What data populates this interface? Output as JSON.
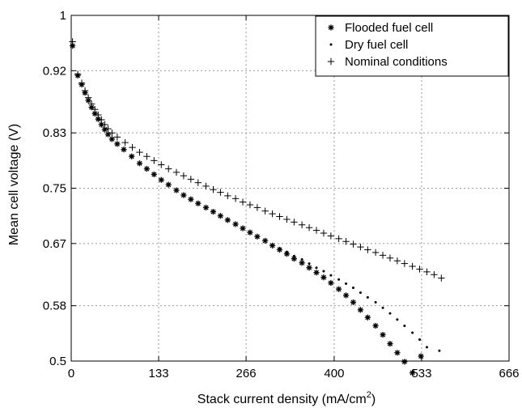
{
  "chart_data": {
    "type": "scatter",
    "title": "",
    "xlabel": "Stack current density (mA/cm",
    "xlabel_sup": "2",
    "xlabel_close": ")",
    "ylabel": "Mean cell voltage (V)",
    "xlim": [
      0,
      666
    ],
    "ylim": [
      0.5,
      1
    ],
    "x_ticks": [
      0,
      133,
      266,
      400,
      533,
      666
    ],
    "x_tick_labels": [
      "0",
      "133",
      "266",
      "400",
      "533",
      "666"
    ],
    "y_ticks": [
      0.5,
      0.58,
      0.67,
      0.75,
      0.83,
      0.92,
      1
    ],
    "y_tick_labels": [
      "0.5",
      "0.58",
      "0.67",
      "0.75",
      "0.83",
      "0.92",
      "1"
    ],
    "grid": true,
    "legend_position": "top-right",
    "series": [
      {
        "name": "Flooded fuel cell",
        "marker": "asterisk",
        "points": [
          [
            2,
            0.956
          ],
          [
            10,
            0.913
          ],
          [
            16,
            0.9
          ],
          [
            21,
            0.888
          ],
          [
            26,
            0.877
          ],
          [
            31,
            0.867
          ],
          [
            36,
            0.858
          ],
          [
            41,
            0.85
          ],
          [
            46,
            0.842
          ],
          [
            51,
            0.835
          ],
          [
            56,
            0.828
          ],
          [
            62,
            0.821
          ],
          [
            70,
            0.814
          ],
          [
            80,
            0.806
          ],
          [
            92,
            0.796
          ],
          [
            104,
            0.786
          ],
          [
            115,
            0.778
          ],
          [
            126,
            0.77
          ],
          [
            137,
            0.762
          ],
          [
            148,
            0.755
          ],
          [
            160,
            0.747
          ],
          [
            171,
            0.74
          ],
          [
            182,
            0.734
          ],
          [
            193,
            0.728
          ],
          [
            205,
            0.722
          ],
          [
            216,
            0.716
          ],
          [
            227,
            0.71
          ],
          [
            238,
            0.704
          ],
          [
            250,
            0.698
          ],
          [
            261,
            0.692
          ],
          [
            272,
            0.686
          ],
          [
            283,
            0.68
          ],
          [
            295,
            0.674
          ],
          [
            306,
            0.667
          ],
          [
            317,
            0.661
          ],
          [
            328,
            0.655
          ],
          [
            339,
            0.648
          ],
          [
            351,
            0.642
          ],
          [
            362,
            0.635
          ],
          [
            373,
            0.628
          ],
          [
            384,
            0.621
          ],
          [
            395,
            0.613
          ],
          [
            407,
            0.604
          ],
          [
            418,
            0.595
          ],
          [
            429,
            0.585
          ],
          [
            440,
            0.574
          ],
          [
            451,
            0.563
          ],
          [
            463,
            0.551
          ],
          [
            474,
            0.538
          ],
          [
            485,
            0.525
          ],
          [
            496,
            0.512
          ],
          [
            507,
            0.499
          ],
          [
            519,
            0.483
          ],
          [
            532,
            0.507
          ]
        ]
      },
      {
        "name": "Dry fuel cell",
        "marker": "dot",
        "points": [
          [
            2,
            0.956
          ],
          [
            10,
            0.913
          ],
          [
            16,
            0.9
          ],
          [
            21,
            0.888
          ],
          [
            26,
            0.877
          ],
          [
            31,
            0.867
          ],
          [
            36,
            0.858
          ],
          [
            41,
            0.85
          ],
          [
            46,
            0.842
          ],
          [
            51,
            0.835
          ],
          [
            56,
            0.828
          ],
          [
            62,
            0.821
          ],
          [
            70,
            0.814
          ],
          [
            80,
            0.806
          ],
          [
            92,
            0.796
          ],
          [
            104,
            0.786
          ],
          [
            115,
            0.778
          ],
          [
            126,
            0.77
          ],
          [
            137,
            0.762
          ],
          [
            148,
            0.755
          ],
          [
            160,
            0.747
          ],
          [
            171,
            0.74
          ],
          [
            182,
            0.734
          ],
          [
            193,
            0.728
          ],
          [
            205,
            0.722
          ],
          [
            216,
            0.716
          ],
          [
            227,
            0.71
          ],
          [
            238,
            0.704
          ],
          [
            250,
            0.698
          ],
          [
            261,
            0.692
          ],
          [
            272,
            0.686
          ],
          [
            283,
            0.68
          ],
          [
            295,
            0.674
          ],
          [
            306,
            0.668
          ],
          [
            317,
            0.663
          ],
          [
            328,
            0.658
          ],
          [
            339,
            0.652
          ],
          [
            351,
            0.647
          ],
          [
            362,
            0.641
          ],
          [
            373,
            0.635
          ],
          [
            384,
            0.63
          ],
          [
            395,
            0.624
          ],
          [
            407,
            0.618
          ],
          [
            418,
            0.612
          ],
          [
            429,
            0.606
          ],
          [
            440,
            0.599
          ],
          [
            451,
            0.592
          ],
          [
            463,
            0.585
          ],
          [
            474,
            0.577
          ],
          [
            485,
            0.569
          ],
          [
            496,
            0.56
          ],
          [
            507,
            0.551
          ],
          [
            519,
            0.541
          ],
          [
            530,
            0.531
          ],
          [
            541,
            0.52
          ],
          [
            560,
            0.515
          ]
        ]
      },
      {
        "name": "Nominal conditions",
        "marker": "plus",
        "points": [
          [
            2,
            0.962
          ],
          [
            10,
            0.915
          ],
          [
            16,
            0.902
          ],
          [
            21,
            0.891
          ],
          [
            26,
            0.881
          ],
          [
            31,
            0.872
          ],
          [
            36,
            0.864
          ],
          [
            41,
            0.856
          ],
          [
            46,
            0.849
          ],
          [
            51,
            0.842
          ],
          [
            56,
            0.836
          ],
          [
            62,
            0.83
          ],
          [
            70,
            0.824
          ],
          [
            82,
            0.816
          ],
          [
            93,
            0.809
          ],
          [
            104,
            0.802
          ],
          [
            115,
            0.796
          ],
          [
            126,
            0.79
          ],
          [
            137,
            0.784
          ],
          [
            148,
            0.778
          ],
          [
            160,
            0.773
          ],
          [
            171,
            0.768
          ],
          [
            182,
            0.763
          ],
          [
            193,
            0.758
          ],
          [
            205,
            0.753
          ],
          [
            216,
            0.748
          ],
          [
            227,
            0.744
          ],
          [
            238,
            0.739
          ],
          [
            250,
            0.735
          ],
          [
            261,
            0.73
          ],
          [
            272,
            0.726
          ],
          [
            283,
            0.722
          ],
          [
            295,
            0.717
          ],
          [
            306,
            0.713
          ],
          [
            317,
            0.709
          ],
          [
            328,
            0.705
          ],
          [
            339,
            0.701
          ],
          [
            351,
            0.697
          ],
          [
            362,
            0.693
          ],
          [
            373,
            0.689
          ],
          [
            384,
            0.685
          ],
          [
            395,
            0.681
          ],
          [
            407,
            0.677
          ],
          [
            418,
            0.673
          ],
          [
            429,
            0.669
          ],
          [
            440,
            0.665
          ],
          [
            451,
            0.661
          ],
          [
            463,
            0.657
          ],
          [
            474,
            0.653
          ],
          [
            485,
            0.649
          ],
          [
            496,
            0.645
          ],
          [
            507,
            0.641
          ],
          [
            519,
            0.637
          ],
          [
            530,
            0.633
          ],
          [
            541,
            0.629
          ],
          [
            552,
            0.625
          ],
          [
            563,
            0.62
          ]
        ]
      }
    ]
  }
}
